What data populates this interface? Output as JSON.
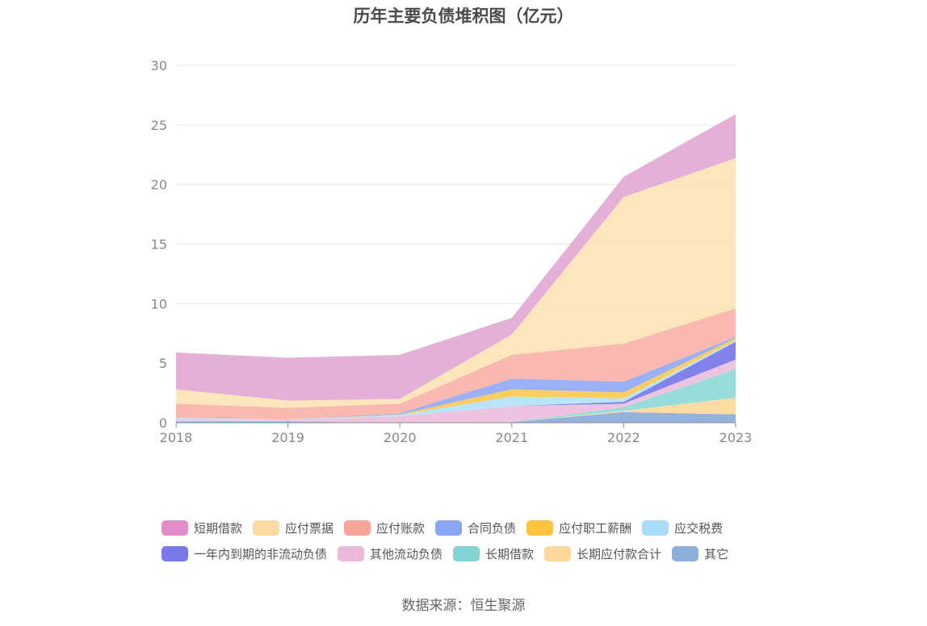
{
  "chart_data": {
    "type": "area",
    "stacked": true,
    "title": "历年主要负债堆积图（亿元）",
    "categories": [
      "2018",
      "2019",
      "2020",
      "2021",
      "2022",
      "2023"
    ],
    "ylim": [
      0,
      30
    ],
    "yticks": [
      0,
      5,
      10,
      15,
      20,
      25,
      30
    ],
    "grid": true,
    "legend_position": "bottom",
    "series": [
      {
        "name": "其它",
        "color": "#8eaedc",
        "values": [
          0.1,
          0.1,
          0.0,
          0.05,
          0.9,
          0.7
        ]
      },
      {
        "name": "长期应付款合计",
        "color": "#fdd9a0",
        "values": [
          0.0,
          0.0,
          0.0,
          0.0,
          0.1,
          1.4
        ]
      },
      {
        "name": "长期借款",
        "color": "#93dada",
        "values": [
          0.0,
          0.0,
          0.0,
          0.0,
          0.3,
          2.4
        ]
      },
      {
        "name": "其他流动负债",
        "color": "#ebc1dd",
        "values": [
          0.1,
          0.1,
          0.55,
          1.35,
          0.3,
          0.8
        ]
      },
      {
        "name": "一年内到期的非流动负债",
        "color": "#7b7bea",
        "values": [
          0.0,
          0.0,
          0.0,
          0.0,
          0.15,
          1.5
        ]
      },
      {
        "name": "应交税费",
        "color": "#b5e4fa",
        "values": [
          0.2,
          0.05,
          0.1,
          0.8,
          0.3,
          0.1
        ]
      },
      {
        "name": "应付职工薪酬",
        "color": "#fdcb55",
        "values": [
          0.0,
          0.0,
          0.05,
          0.6,
          0.5,
          0.2
        ]
      },
      {
        "name": "合同负债",
        "color": "#97acf8",
        "values": [
          0.0,
          0.0,
          0.1,
          0.9,
          0.9,
          0.1
        ]
      },
      {
        "name": "应付账款",
        "color": "#f9b5ad",
        "values": [
          1.2,
          1.0,
          0.8,
          2.0,
          3.2,
          2.4
        ]
      },
      {
        "name": "应付票据",
        "color": "#fde4b8",
        "values": [
          1.2,
          0.6,
          0.4,
          1.7,
          12.3,
          12.6
        ]
      },
      {
        "name": "短期借款",
        "color": "#e3acd5",
        "values": [
          3.1,
          3.6,
          3.7,
          1.4,
          1.7,
          3.7
        ]
      }
    ]
  },
  "legend_rows": [
    [
      {
        "label": "短期借款",
        "color": "#e18dc8"
      },
      {
        "label": "应付票据",
        "color": "#fddaa3"
      },
      {
        "label": "应付账款",
        "color": "#f8a49a"
      },
      {
        "label": "合同负债",
        "color": "#8aa4f6"
      },
      {
        "label": "应付职工薪酬",
        "color": "#fcc43f"
      },
      {
        "label": "应交税费",
        "color": "#a8dcf8"
      }
    ],
    [
      {
        "label": "一年内到期的非流动负债",
        "color": "#7a79ea"
      },
      {
        "label": "其他流动负债",
        "color": "#eab9da"
      },
      {
        "label": "长期借款",
        "color": "#82d4d4"
      },
      {
        "label": "长期应付款合计",
        "color": "#fdd89c"
      },
      {
        "label": "其它",
        "color": "#8eaedc"
      }
    ]
  ],
  "source_text": "数据来源：恒生聚源"
}
